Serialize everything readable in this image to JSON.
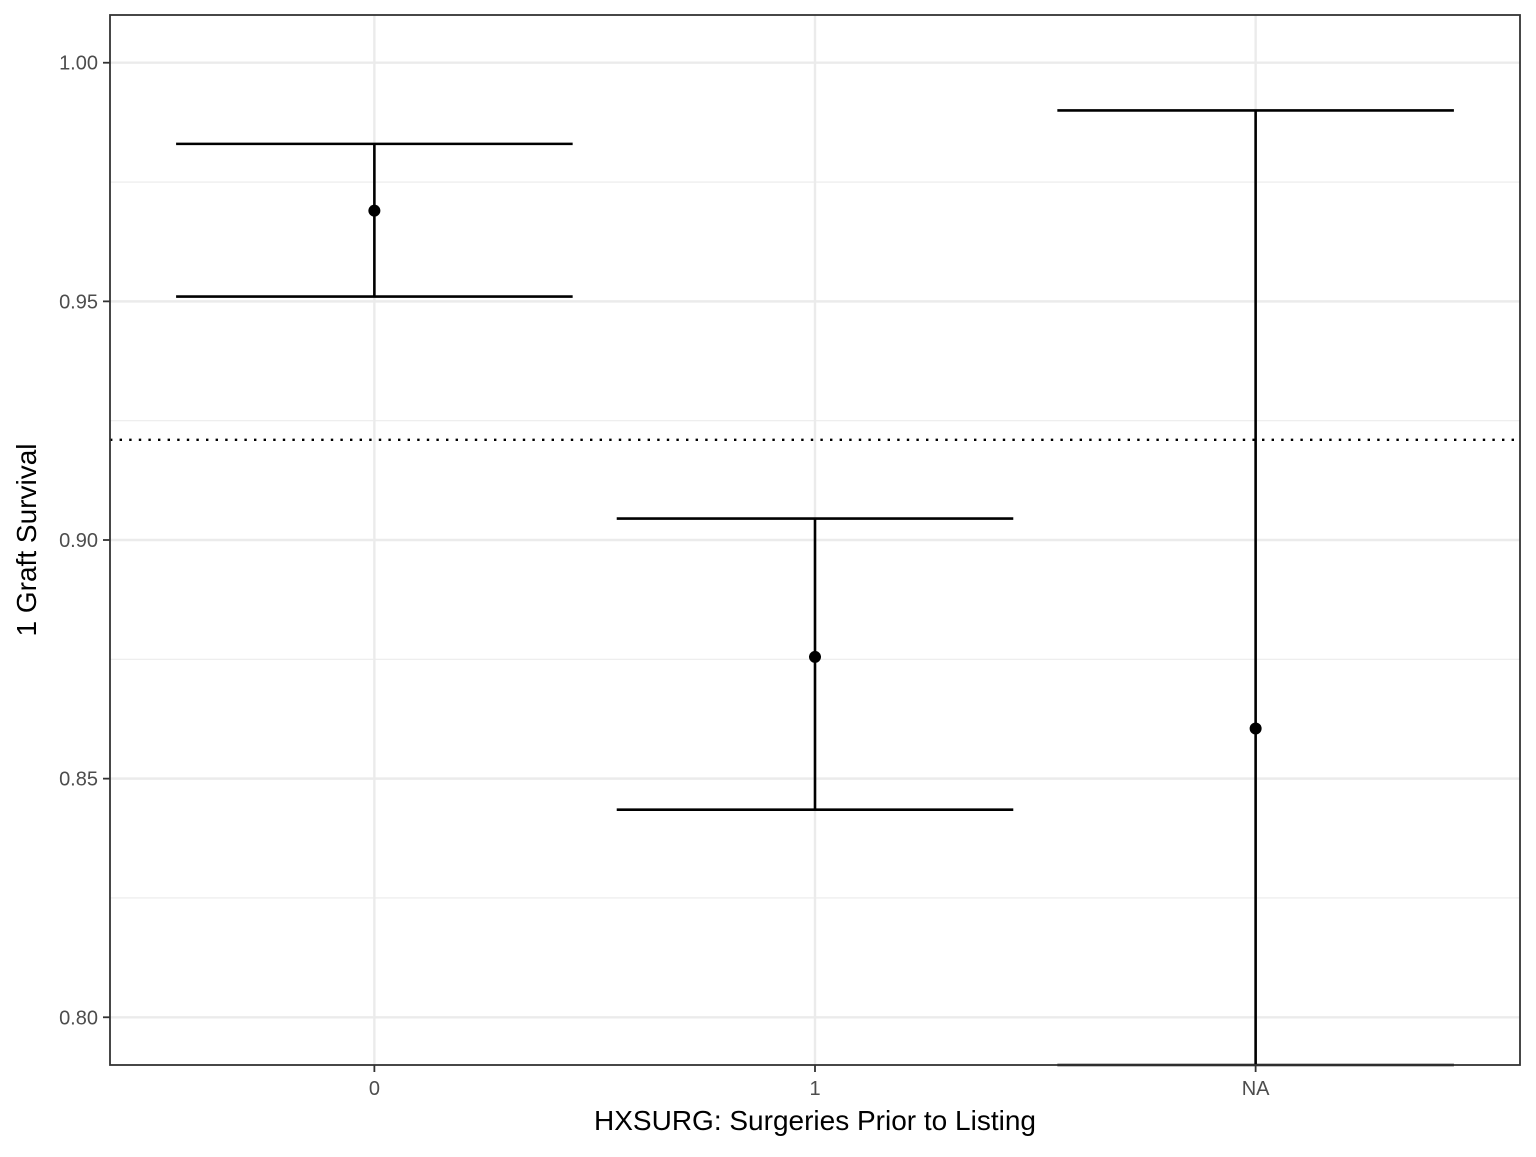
{
  "chart_data": {
    "type": "errorbar",
    "title": "",
    "xlabel": "HXSURG: Surgeries Prior to Listing",
    "ylabel": "1 Graft Survival",
    "categories": [
      "0",
      "1",
      "NA"
    ],
    "estimates": [
      0.969,
      0.8755,
      0.8605
    ],
    "lower": [
      0.951,
      0.8435,
      0.79
    ],
    "upper": [
      0.983,
      0.9045,
      0.99
    ],
    "reference_line": {
      "value": 0.921,
      "style": "dotted"
    },
    "ylim": [
      0.79,
      1.01
    ],
    "y_ticks": [
      0.8,
      0.85,
      0.9,
      0.95,
      1.0
    ],
    "y_tick_labels": [
      "0.80",
      "0.85",
      "0.90",
      "0.95",
      "1.00"
    ],
    "grid": true,
    "colors": {
      "marks": "#000000",
      "grid": "#ebebeb",
      "panel_border": "#333333"
    }
  }
}
